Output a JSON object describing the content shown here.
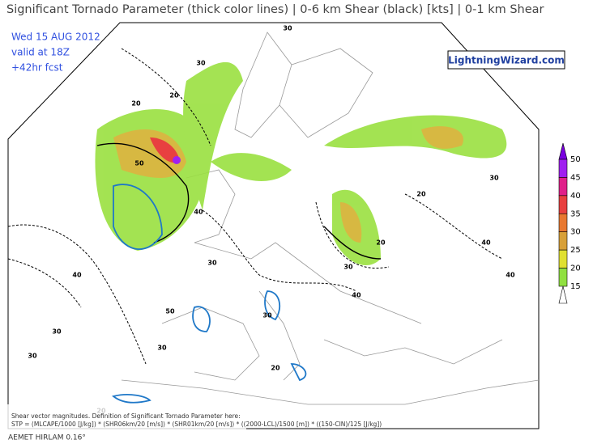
{
  "header": {
    "title": "Significant Tornado Parameter (thick color lines) | 0-6 km Shear (black) [kts] | 0-1 km Shear",
    "date": "Wed 15 AUG 2012",
    "valid": "valid at 18Z",
    "forecast": "+42hr fcst",
    "site": "LightningWizard.com"
  },
  "legend": {
    "ticks": [
      50,
      45,
      40,
      35,
      30,
      25,
      20,
      15
    ],
    "colors": [
      "#7a00e0",
      "#a020f0",
      "#e0208a",
      "#e84040",
      "#e87830",
      "#d8a038",
      "#e0e030",
      "#90e040"
    ]
  },
  "contour_labels": [
    30,
    20,
    30,
    20,
    50,
    40,
    30,
    40,
    30,
    20,
    20,
    30,
    40,
    50,
    30,
    20,
    30,
    40,
    30,
    20,
    30,
    40
  ],
  "footer": {
    "note": "Shear vector magnitudes. Definition of Significant Tornado Parameter here:",
    "formula": "STP = (MLCAPE/1000 [J/kg]) * (SHR06km/20 [m/s]) * (SHR01km/20 [m/s]) * ((2000-LCL)/1500 [m]) * ((150-CIN)/125 [J/kg])",
    "model": "AEMET HIRLAM 0.16°"
  }
}
